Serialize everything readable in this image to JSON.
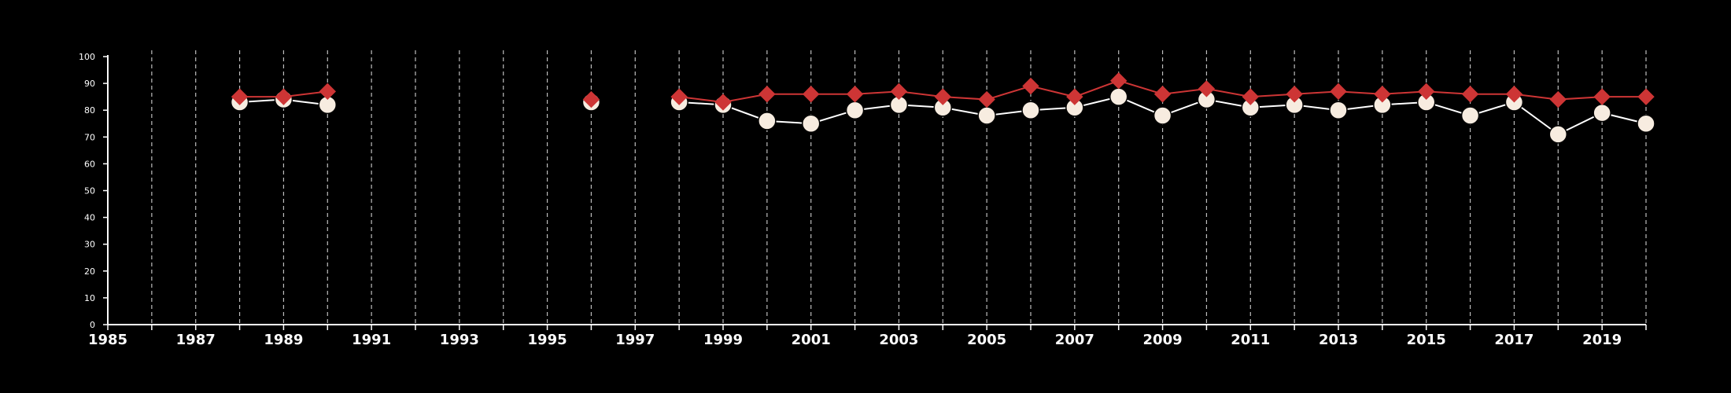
{
  "colors": {
    "background": "#000000",
    "axis": "#ffffff",
    "gridline": "#bdbdbd",
    "series_a": "#cd3535",
    "series_b_fill": "#f7ece0",
    "series_b_line": "#ffffff"
  },
  "chart_data": {
    "type": "line",
    "title": "",
    "xlabel": "",
    "ylabel": "",
    "xlim": [
      1985,
      2020
    ],
    "ylim": [
      0,
      100
    ],
    "x_ticks": [
      1985,
      1986,
      1987,
      1988,
      1989,
      1990,
      1991,
      1992,
      1993,
      1994,
      1995,
      1996,
      1997,
      1998,
      1999,
      2000,
      2001,
      2002,
      2003,
      2004,
      2005,
      2006,
      2007,
      2008,
      2009,
      2010,
      2011,
      2012,
      2013,
      2014,
      2015,
      2016,
      2017,
      2018,
      2019,
      2020
    ],
    "x_tick_labels": [
      "1985",
      "",
      "1987",
      "",
      "1989",
      "",
      "1991",
      "",
      "1993",
      "",
      "1995",
      "",
      "1997",
      "",
      "1999",
      "",
      "2001",
      "",
      "2003",
      "",
      "2005",
      "",
      "2007",
      "",
      "2009",
      "",
      "2011",
      "",
      "2013",
      "",
      "2015",
      "",
      "2017",
      "",
      "2019",
      ""
    ],
    "y_ticks": [
      0,
      10,
      20,
      30,
      40,
      50,
      60,
      70,
      80,
      90,
      100
    ],
    "y_tick_labels": [
      "0",
      "10",
      "20",
      "30",
      "40",
      "50",
      "60",
      "70",
      "80",
      "90",
      "100"
    ],
    "grid": "vertical dashed lines at each year",
    "legend": "none",
    "series": [
      {
        "marker": "diamond",
        "color": "#cd3535",
        "points": [
          [
            1988,
            85
          ],
          [
            1989,
            85
          ],
          [
            1990,
            87
          ],
          [
            1996,
            84
          ],
          [
            1998,
            85
          ],
          [
            1999,
            83
          ],
          [
            2000,
            86
          ],
          [
            2001,
            86
          ],
          [
            2002,
            86
          ],
          [
            2003,
            87
          ],
          [
            2004,
            85
          ],
          [
            2005,
            84
          ],
          [
            2006,
            89
          ],
          [
            2007,
            85
          ],
          [
            2008,
            91
          ],
          [
            2009,
            86
          ],
          [
            2010,
            88
          ],
          [
            2011,
            85
          ],
          [
            2012,
            86
          ],
          [
            2013,
            87
          ],
          [
            2014,
            86
          ],
          [
            2015,
            87
          ],
          [
            2016,
            86
          ],
          [
            2017,
            86
          ],
          [
            2018,
            84
          ],
          [
            2019,
            85
          ],
          [
            2020,
            85
          ]
        ]
      },
      {
        "marker": "circle",
        "color": "#f7ece0",
        "points": [
          [
            1988,
            83
          ],
          [
            1989,
            84
          ],
          [
            1990,
            82
          ],
          [
            1996,
            83
          ],
          [
            1998,
            83
          ],
          [
            1999,
            82
          ],
          [
            2000,
            76
          ],
          [
            2001,
            75
          ],
          [
            2002,
            80
          ],
          [
            2003,
            82
          ],
          [
            2004,
            81
          ],
          [
            2005,
            78
          ],
          [
            2006,
            80
          ],
          [
            2007,
            81
          ],
          [
            2008,
            85
          ],
          [
            2009,
            78
          ],
          [
            2010,
            84
          ],
          [
            2011,
            81
          ],
          [
            2012,
            82
          ],
          [
            2013,
            80
          ],
          [
            2014,
            82
          ],
          [
            2015,
            83
          ],
          [
            2016,
            78
          ],
          [
            2017,
            83
          ],
          [
            2018,
            71
          ],
          [
            2019,
            79
          ],
          [
            2020,
            75
          ]
        ]
      }
    ]
  }
}
